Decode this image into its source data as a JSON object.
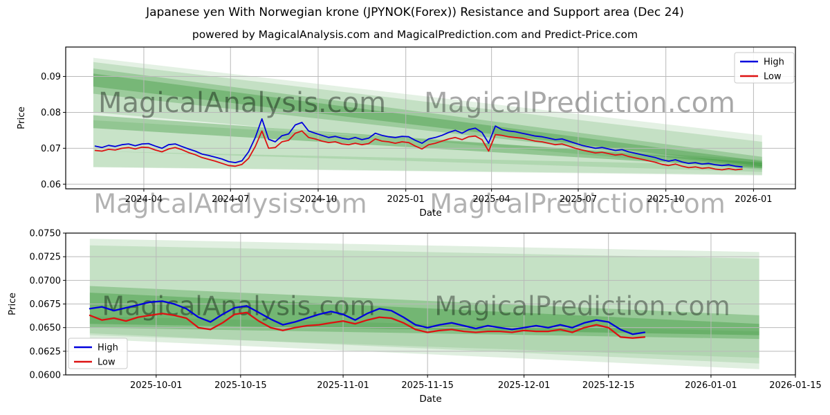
{
  "title": "Japanese yen With Norwegian krone (JPYNOK(Forex)) Resistance and Support area (Dec 24)",
  "subtitle": "powered by MagicalAnalysis.com and MagicalPrediction.com and Predict-Price.com",
  "watermarks": {
    "analysis": "MagicalAnalysis.com",
    "prediction": "MagicalPrediction.com"
  },
  "colors": {
    "high": "#0000dd",
    "low": "#dd1111",
    "band": "#228b22",
    "grid": "#b9b9b9",
    "spine": "#000000",
    "legend_border": "#c9c9c9"
  },
  "chart_data": [
    {
      "type": "line",
      "name": "top-chart",
      "xlabel": "Date",
      "ylabel": "Price",
      "grid": true,
      "legend": {
        "loc": "upper right",
        "entries": [
          "High",
          "Low"
        ]
      },
      "xlim": [
        "2024-01-10",
        "2026-02-14"
      ],
      "ylim": [
        0.0587,
        0.0982
      ],
      "yticks": [
        {
          "v": 0.06,
          "label": "0.06"
        },
        {
          "v": 0.07,
          "label": "0.07"
        },
        {
          "v": 0.08,
          "label": "0.08"
        },
        {
          "v": 0.09,
          "label": "0.09"
        }
      ],
      "xticks": [
        {
          "d": "2024-04-01",
          "label": "2024-04"
        },
        {
          "d": "2024-07-01",
          "label": "2024-07"
        },
        {
          "d": "2024-10-01",
          "label": "2024-10"
        },
        {
          "d": "2025-01-01",
          "label": "2025-01"
        },
        {
          "d": "2025-04-01",
          "label": "2025-04"
        },
        {
          "d": "2025-07-01",
          "label": "2025-07"
        },
        {
          "d": "2025-10-01",
          "label": "2025-10"
        },
        {
          "d": "2026-01-01",
          "label": "2026-01"
        }
      ],
      "bands": [
        {
          "x0": "2024-02-08",
          "x1": "2026-01-10",
          "top0": 0.0952,
          "bot0": 0.0647,
          "top1": 0.0736,
          "bot1": 0.0624,
          "alpha": 0.12
        },
        {
          "x0": "2024-02-08",
          "x1": "2026-01-10",
          "top0": 0.094,
          "bot0": 0.08,
          "top1": 0.0718,
          "bot1": 0.064,
          "alpha": 0.16
        },
        {
          "x0": "2024-02-08",
          "x1": "2026-01-10",
          "top0": 0.0922,
          "bot0": 0.0852,
          "top1": 0.0676,
          "bot1": 0.0646,
          "alpha": 0.25
        },
        {
          "x0": "2024-02-08",
          "x1": "2026-01-10",
          "top0": 0.0908,
          "bot0": 0.0872,
          "top1": 0.0664,
          "bot1": 0.065,
          "alpha": 0.3
        },
        {
          "x0": "2024-02-08",
          "x1": "2026-01-10",
          "top0": 0.0792,
          "bot0": 0.0756,
          "top1": 0.066,
          "bot1": 0.0644,
          "alpha": 0.32
        },
        {
          "x0": "2024-02-08",
          "x1": "2026-01-10",
          "top0": 0.0778,
          "bot0": 0.0692,
          "top1": 0.0668,
          "bot1": 0.0634,
          "alpha": 0.14
        },
        {
          "x0": "2024-02-08",
          "x1": "2026-01-10",
          "top0": 0.0692,
          "bot0": 0.0648,
          "top1": 0.0652,
          "bot1": 0.0626,
          "alpha": 0.14
        }
      ],
      "dates": [
        "2024-02-10",
        "2024-02-17",
        "2024-02-24",
        "2024-03-02",
        "2024-03-09",
        "2024-03-16",
        "2024-03-23",
        "2024-03-30",
        "2024-04-06",
        "2024-04-13",
        "2024-04-20",
        "2024-04-27",
        "2024-05-04",
        "2024-05-11",
        "2024-05-18",
        "2024-05-25",
        "2024-06-01",
        "2024-06-08",
        "2024-06-15",
        "2024-06-22",
        "2024-06-29",
        "2024-07-06",
        "2024-07-13",
        "2024-07-20",
        "2024-07-27",
        "2024-08-03",
        "2024-08-10",
        "2024-08-17",
        "2024-08-24",
        "2024-08-31",
        "2024-09-07",
        "2024-09-14",
        "2024-09-21",
        "2024-09-28",
        "2024-10-05",
        "2024-10-12",
        "2024-10-19",
        "2024-10-26",
        "2024-11-02",
        "2024-11-09",
        "2024-11-16",
        "2024-11-23",
        "2024-11-30",
        "2024-12-07",
        "2024-12-14",
        "2024-12-21",
        "2024-12-28",
        "2025-01-04",
        "2025-01-11",
        "2025-01-18",
        "2025-01-25",
        "2025-02-01",
        "2025-02-08",
        "2025-02-15",
        "2025-02-22",
        "2025-03-01",
        "2025-03-08",
        "2025-03-15",
        "2025-03-22",
        "2025-03-29",
        "2025-04-05",
        "2025-04-12",
        "2025-04-19",
        "2025-04-26",
        "2025-05-03",
        "2025-05-10",
        "2025-05-17",
        "2025-05-24",
        "2025-05-31",
        "2025-06-07",
        "2025-06-14",
        "2025-06-21",
        "2025-06-28",
        "2025-07-05",
        "2025-07-12",
        "2025-07-19",
        "2025-07-26",
        "2025-08-02",
        "2025-08-09",
        "2025-08-16",
        "2025-08-23",
        "2025-08-30",
        "2025-09-06",
        "2025-09-13",
        "2025-09-20",
        "2025-09-27",
        "2025-10-04",
        "2025-10-11",
        "2025-10-18",
        "2025-10-25",
        "2025-11-01",
        "2025-11-08",
        "2025-11-15",
        "2025-11-22",
        "2025-11-29",
        "2025-12-06",
        "2025-12-13",
        "2025-12-20"
      ],
      "series": [
        {
          "name": "High",
          "color": "high",
          "values": [
            0.0706,
            0.0702,
            0.0708,
            0.0705,
            0.071,
            0.0712,
            0.0707,
            0.0712,
            0.0713,
            0.0706,
            0.07,
            0.071,
            0.0712,
            0.0705,
            0.0698,
            0.0692,
            0.0684,
            0.068,
            0.0675,
            0.067,
            0.0663,
            0.066,
            0.0665,
            0.069,
            0.073,
            0.0782,
            0.0725,
            0.0718,
            0.0735,
            0.074,
            0.0765,
            0.0772,
            0.0748,
            0.0742,
            0.0736,
            0.073,
            0.0733,
            0.0728,
            0.0725,
            0.073,
            0.0724,
            0.0728,
            0.0742,
            0.0736,
            0.0732,
            0.073,
            0.0733,
            0.0732,
            0.0722,
            0.0714,
            0.0726,
            0.073,
            0.0736,
            0.0744,
            0.075,
            0.0742,
            0.0752,
            0.0756,
            0.0744,
            0.0714,
            0.0762,
            0.0752,
            0.0748,
            0.0746,
            0.0742,
            0.0738,
            0.0734,
            0.0732,
            0.0728,
            0.0724,
            0.0726,
            0.072,
            0.0714,
            0.0708,
            0.0704,
            0.07,
            0.0702,
            0.0698,
            0.0694,
            0.0696,
            0.069,
            0.0686,
            0.0682,
            0.0678,
            0.0674,
            0.0668,
            0.0664,
            0.0668,
            0.0662,
            0.0658,
            0.066,
            0.0656,
            0.0658,
            0.0654,
            0.0652,
            0.0654,
            0.065,
            0.0648
          ]
        },
        {
          "name": "Low",
          "color": "low",
          "values": [
            0.0694,
            0.0692,
            0.0697,
            0.0695,
            0.07,
            0.0702,
            0.0698,
            0.0703,
            0.0702,
            0.0695,
            0.069,
            0.0698,
            0.0702,
            0.0696,
            0.0688,
            0.0682,
            0.0674,
            0.0669,
            0.0664,
            0.0658,
            0.0652,
            0.065,
            0.0655,
            0.0672,
            0.0705,
            0.0748,
            0.07,
            0.0702,
            0.0718,
            0.0722,
            0.0742,
            0.0748,
            0.073,
            0.0726,
            0.072,
            0.0716,
            0.0718,
            0.0712,
            0.071,
            0.0714,
            0.071,
            0.0713,
            0.0726,
            0.072,
            0.0718,
            0.0714,
            0.0718,
            0.0716,
            0.0706,
            0.0698,
            0.071,
            0.0714,
            0.072,
            0.0726,
            0.073,
            0.0724,
            0.0732,
            0.0734,
            0.0724,
            0.0692,
            0.0738,
            0.0736,
            0.0732,
            0.073,
            0.0728,
            0.0724,
            0.072,
            0.0718,
            0.0714,
            0.071,
            0.0712,
            0.0706,
            0.07,
            0.0695,
            0.0691,
            0.0687,
            0.0689,
            0.0685,
            0.0681,
            0.0683,
            0.0677,
            0.0673,
            0.0669,
            0.0665,
            0.0661,
            0.0655,
            0.0652,
            0.0656,
            0.065,
            0.0646,
            0.0648,
            0.0644,
            0.0646,
            0.0642,
            0.064,
            0.0643,
            0.064,
            0.0642
          ]
        }
      ]
    },
    {
      "type": "line",
      "name": "bottom-chart",
      "xlabel": "Date",
      "ylabel": "Price",
      "grid": true,
      "legend": {
        "loc": "lower left",
        "entries": [
          "High",
          "Low"
        ]
      },
      "xlim": [
        "2025-09-16",
        "2026-01-15"
      ],
      "ylim": [
        0.06,
        0.075
      ],
      "yticks": [
        {
          "v": 0.06,
          "label": "0.0600"
        },
        {
          "v": 0.0625,
          "label": "0.0625"
        },
        {
          "v": 0.065,
          "label": "0.0650"
        },
        {
          "v": 0.0675,
          "label": "0.0675"
        },
        {
          "v": 0.07,
          "label": "0.0700"
        },
        {
          "v": 0.0725,
          "label": "0.0725"
        },
        {
          "v": 0.075,
          "label": "0.0750"
        }
      ],
      "xticks": [
        {
          "d": "2025-10-01",
          "label": "2025-10-01"
        },
        {
          "d": "2025-10-15",
          "label": "2025-10-15"
        },
        {
          "d": "2025-11-01",
          "label": "2025-11-01"
        },
        {
          "d": "2025-11-15",
          "label": "2025-11-15"
        },
        {
          "d": "2025-12-01",
          "label": "2025-12-01"
        },
        {
          "d": "2025-12-15",
          "label": "2025-12-15"
        },
        {
          "d": "2026-01-01",
          "label": "2026-01-01"
        },
        {
          "d": "2026-01-15",
          "label": "2026-01-15"
        }
      ],
      "bands": [
        {
          "x0": "2025-09-20",
          "x1": "2026-01-09",
          "top0": 0.0744,
          "bot0": 0.0638,
          "top1": 0.073,
          "bot1": 0.0606,
          "alpha": 0.14
        },
        {
          "x0": "2025-09-20",
          "x1": "2026-01-09",
          "top0": 0.0737,
          "bot0": 0.0644,
          "top1": 0.0723,
          "bot1": 0.0612,
          "alpha": 0.14
        },
        {
          "x0": "2025-09-20",
          "x1": "2026-01-09",
          "top0": 0.0694,
          "bot0": 0.065,
          "top1": 0.0663,
          "bot1": 0.0638,
          "alpha": 0.28
        },
        {
          "x0": "2025-09-20",
          "x1": "2026-01-09",
          "top0": 0.0687,
          "bot0": 0.0654,
          "top1": 0.0654,
          "bot1": 0.0642,
          "alpha": 0.3
        },
        {
          "x0": "2025-09-20",
          "x1": "2026-01-09",
          "top0": 0.0662,
          "bot0": 0.0642,
          "top1": 0.0646,
          "bot1": 0.0618,
          "alpha": 0.12
        }
      ],
      "dates": [
        "2025-09-20",
        "2025-09-22",
        "2025-09-24",
        "2025-09-26",
        "2025-09-28",
        "2025-09-30",
        "2025-10-02",
        "2025-10-04",
        "2025-10-06",
        "2025-10-08",
        "2025-10-10",
        "2025-10-12",
        "2025-10-14",
        "2025-10-16",
        "2025-10-18",
        "2025-10-20",
        "2025-10-22",
        "2025-10-24",
        "2025-10-26",
        "2025-10-28",
        "2025-10-30",
        "2025-11-01",
        "2025-11-03",
        "2025-11-05",
        "2025-11-07",
        "2025-11-09",
        "2025-11-11",
        "2025-11-13",
        "2025-11-15",
        "2025-11-17",
        "2025-11-19",
        "2025-11-21",
        "2025-11-23",
        "2025-11-25",
        "2025-11-27",
        "2025-11-29",
        "2025-12-01",
        "2025-12-03",
        "2025-12-05",
        "2025-12-07",
        "2025-12-09",
        "2025-12-11",
        "2025-12-13",
        "2025-12-15",
        "2025-12-17",
        "2025-12-19",
        "2025-12-21"
      ],
      "series": [
        {
          "name": "High",
          "color": "high",
          "values": [
            0.067,
            0.0672,
            0.0668,
            0.0671,
            0.0674,
            0.0677,
            0.0678,
            0.0675,
            0.067,
            0.0661,
            0.0656,
            0.0664,
            0.0671,
            0.0673,
            0.0666,
            0.0659,
            0.0653,
            0.0656,
            0.066,
            0.0664,
            0.0667,
            0.0664,
            0.0658,
            0.0665,
            0.067,
            0.0668,
            0.0661,
            0.0653,
            0.065,
            0.0653,
            0.0655,
            0.0652,
            0.0649,
            0.0652,
            0.065,
            0.0648,
            0.065,
            0.0652,
            0.065,
            0.0653,
            0.065,
            0.0655,
            0.0658,
            0.0656,
            0.0648,
            0.0643,
            0.0645
          ]
        },
        {
          "name": "Low",
          "color": "low",
          "values": [
            0.0663,
            0.0658,
            0.066,
            0.0657,
            0.0661,
            0.0663,
            0.0665,
            0.0663,
            0.066,
            0.065,
            0.0648,
            0.0655,
            0.0664,
            0.0666,
            0.0657,
            0.065,
            0.0647,
            0.065,
            0.0652,
            0.0653,
            0.0655,
            0.0657,
            0.0654,
            0.0658,
            0.0661,
            0.066,
            0.0655,
            0.0648,
            0.0645,
            0.0647,
            0.0648,
            0.0646,
            0.0645,
            0.0646,
            0.0646,
            0.0645,
            0.0647,
            0.0646,
            0.0646,
            0.0648,
            0.0645,
            0.065,
            0.0653,
            0.065,
            0.064,
            0.0639,
            0.064
          ]
        }
      ]
    }
  ]
}
